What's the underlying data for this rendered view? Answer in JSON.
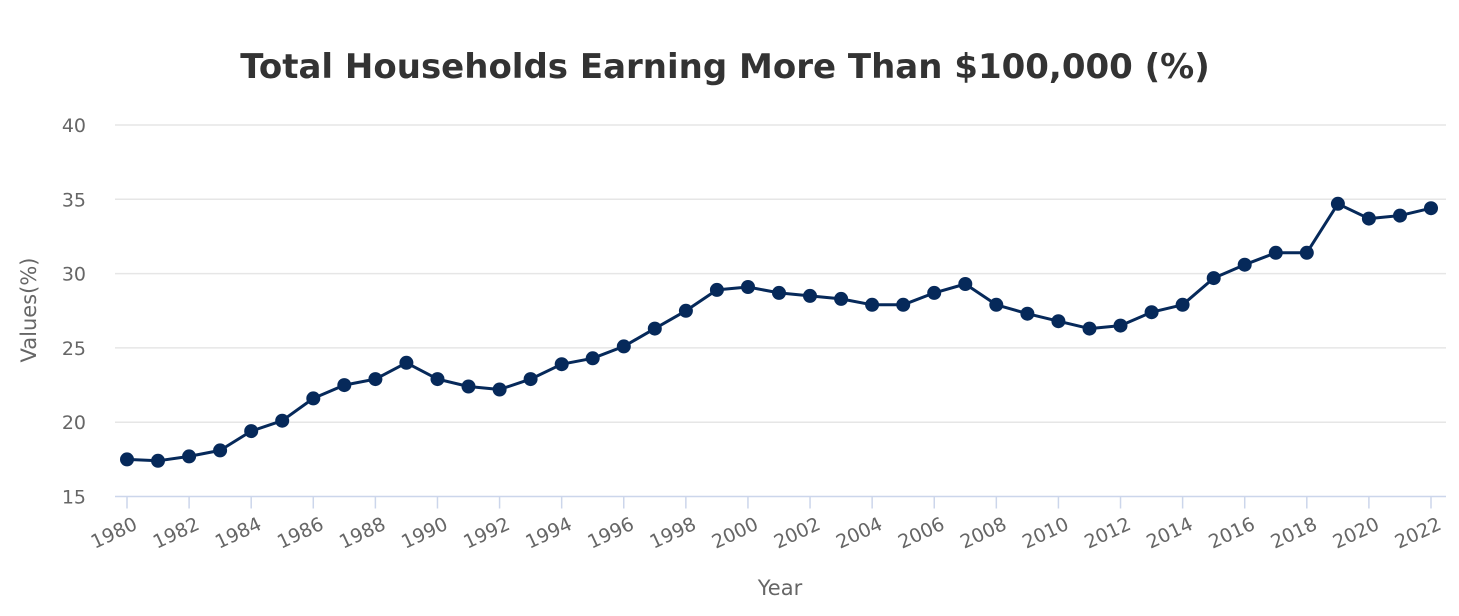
{
  "chart_data": {
    "type": "line",
    "title": "Total Households Earning More Than $100,000 (%)",
    "xlabel": "Year",
    "ylabel": "Values(%)",
    "ylim": [
      15,
      40
    ],
    "yticks": [
      "15",
      "20",
      "25",
      "30",
      "35",
      "40"
    ],
    "xticks": [
      "1980",
      "1982",
      "1984",
      "1986",
      "1988",
      "1990",
      "1992",
      "1994",
      "1996",
      "1998",
      "2000",
      "2002",
      "2004",
      "2006",
      "2008",
      "2010",
      "2012",
      "2014",
      "2016",
      "2018",
      "2020",
      "2022"
    ],
    "grid": true,
    "legend": "none",
    "color": "#06295a",
    "x": [
      1980,
      1981,
      1982,
      1983,
      1984,
      1985,
      1986,
      1987,
      1988,
      1989,
      1990,
      1991,
      1992,
      1993,
      1994,
      1995,
      1996,
      1997,
      1998,
      1999,
      2000,
      2001,
      2002,
      2003,
      2004,
      2005,
      2006,
      2007,
      2008,
      2009,
      2010,
      2011,
      2012,
      2013,
      2014,
      2015,
      2016,
      2017,
      2018,
      2019,
      2020,
      2021,
      2022
    ],
    "series": [
      {
        "values": [
          17.5,
          17.4,
          17.7,
          18.1,
          19.4,
          20.1,
          21.6,
          22.5,
          22.9,
          24.0,
          22.9,
          22.4,
          22.2,
          22.9,
          23.9,
          24.3,
          25.1,
          26.3,
          27.5,
          28.9,
          29.1,
          28.7,
          28.5,
          28.3,
          27.9,
          27.9,
          28.7,
          29.3,
          27.9,
          27.3,
          26.8,
          26.3,
          26.5,
          27.4,
          27.9,
          29.7,
          30.6,
          31.4,
          31.4,
          34.7,
          33.7,
          33.9,
          34.4
        ]
      }
    ]
  }
}
